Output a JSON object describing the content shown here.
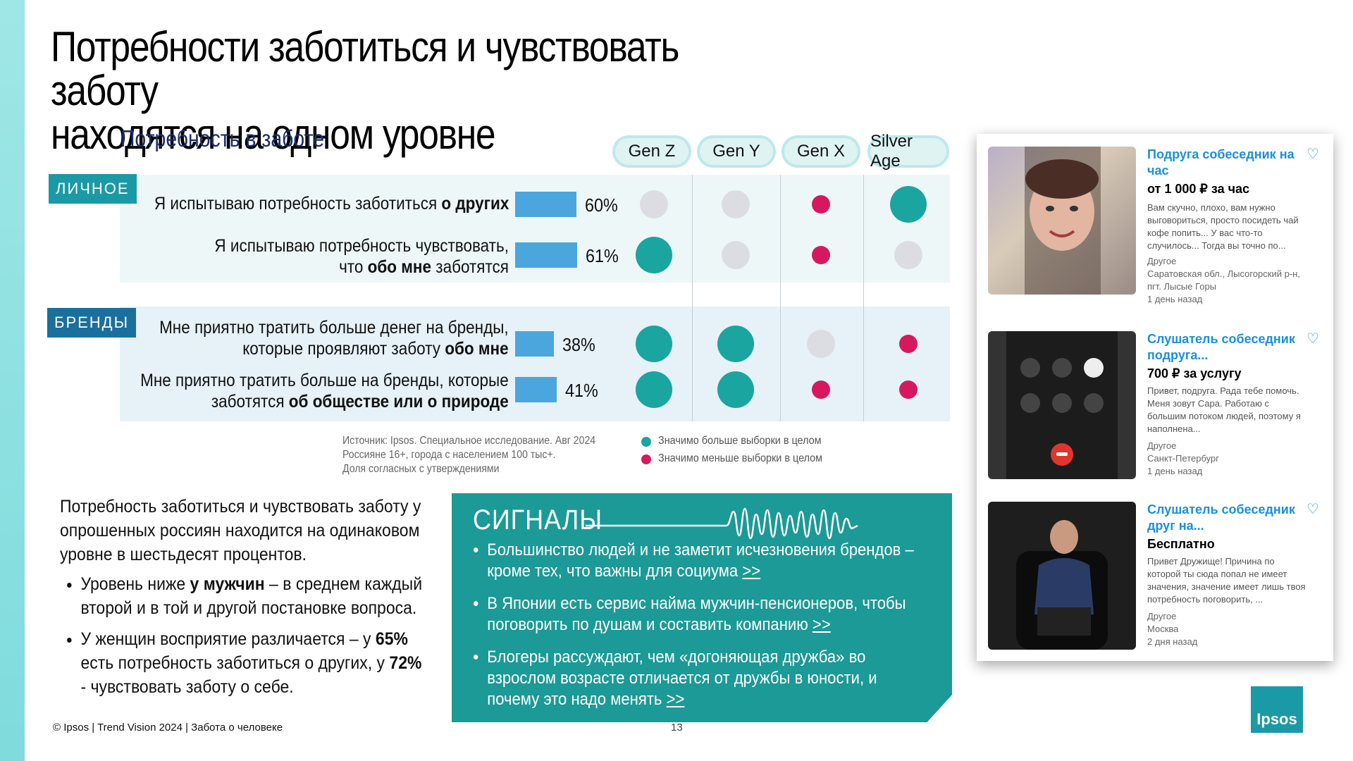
{
  "title_line1": "Потребности заботиться и чувствовать заботу",
  "title_line2": "находятся на одном уровне",
  "subtitle": "Потребность в заботе",
  "generations": [
    "Gen Z",
    "Gen Y",
    "Gen X",
    "Silver Age"
  ],
  "sections": [
    {
      "tag": "ЛИЧНОЕ",
      "rows": [
        {
          "text_a": "Я испытываю потребность заботиться ",
          "bold": "о других",
          "text_b": "",
          "value": 60,
          "pct": "60%",
          "signals": [
            "neutral",
            "neutral",
            "low",
            "high"
          ]
        },
        {
          "text_a": "Я испытываю потребность чувствовать,",
          "text_c": "что ",
          "bold": "обо мне",
          "text_b": " заботятся",
          "value": 61,
          "pct": "61%",
          "signals": [
            "high",
            "neutral",
            "low",
            "neutral"
          ]
        }
      ]
    },
    {
      "tag": "БРЕНДЫ",
      "rows": [
        {
          "text_a": "Мне приятно тратить больше денег на бренды,",
          "text_c": "которые проявляют заботу ",
          "bold": "обо мне",
          "text_b": "",
          "value": 38,
          "pct": "38%",
          "signals": [
            "high",
            "high",
            "neutral",
            "low"
          ]
        },
        {
          "text_a": "Мне приятно тратить больше на бренды, которые",
          "text_c": "заботятся ",
          "bold": "об обществе или о природе",
          "text_b": "",
          "value": 41,
          "pct": "41%",
          "signals": [
            "high",
            "high",
            "low",
            "low"
          ]
        }
      ]
    }
  ],
  "source_lines": [
    "Источник: Ipsos. Специальное исследование. Авг 2024",
    "Россияне 16+, города с населением 100 тыс+.",
    "Доля согласных с утверждениями"
  ],
  "legend": {
    "high": "Значимо больше выборки в целом",
    "low": "Значимо меньше выборки в целом"
  },
  "colors": {
    "high": "#1aa5a0",
    "low": "#d6195f",
    "neutral": "#dcdde3",
    "bar": "#4aa6dd"
  },
  "body": {
    "intro": "Потребность заботиться и чувствовать заботу у опрошенных россиян находится на одинаковом уровне в шестьдесят процентов.",
    "b1_pre": "Уровень ниже ",
    "b1_bold": "у мужчин",
    "b1_post": " – в среднем каждый второй и в той и другой постановке вопроса.",
    "b2_pre": "У женщин восприятие различается – у ",
    "b2_bold1": "65%",
    "b2_mid": " есть потребность заботиться о других, у ",
    "b2_bold2": "72%",
    "b2_post": " - чувствовать заботу о себе."
  },
  "signals": {
    "title": "СИГНАЛЫ",
    "items": [
      {
        "text": "Большинство людей и не заметит исчезновения брендов – кроме тех, что важны для социума ",
        "link": ">>"
      },
      {
        "text": "В Японии есть сервис найма мужчин-пенсионеров, чтобы поговорить по душам и составить компанию ",
        "link": ">>"
      },
      {
        "text": "Блогеры рассуждают, чем «догоняющая дружба» во взрослом возрасте отличается от дружбы в юности, и почему это надо менять ",
        "link": ">>"
      }
    ]
  },
  "footer": "© Ipsos | Trend Vision 2024 | Забота о человеке",
  "page_number": "13",
  "ads": [
    {
      "title": "Подруга собеседник на час",
      "price": "от 1 000 ₽ за час",
      "desc": "Вам скучно, плохо, вам нужно выговориться, просто посидеть чай кофе попить... У вас что-то случилось... Тогда вы точно по...",
      "category": "Другое",
      "location": "Саратовская обл., Лысогорский р-н, пгт. Лысые Горы",
      "time": "1 день назад"
    },
    {
      "title": "Слушатель собеседник подруга...",
      "price": "700 ₽ за услугу",
      "desc": "Привет, подруга. Рада тебе помочь. Меня зовут Сара. Работаю с большим потоком людей, поэтому я наполнена...",
      "category": "Другое",
      "location": "Санкт-Петербург",
      "time": "1 день назад"
    },
    {
      "title": "Слушатель собеседник друг на...",
      "price": "Бесплатно",
      "desc": "Привет Дружище! Причина по которой ты сюда попал не имеет значения, значение имеет лишь твоя потребность поговорить, ...",
      "category": "Другое",
      "location": "Москва",
      "time": "2 дня назад"
    }
  ],
  "logo": "Ipsos"
}
